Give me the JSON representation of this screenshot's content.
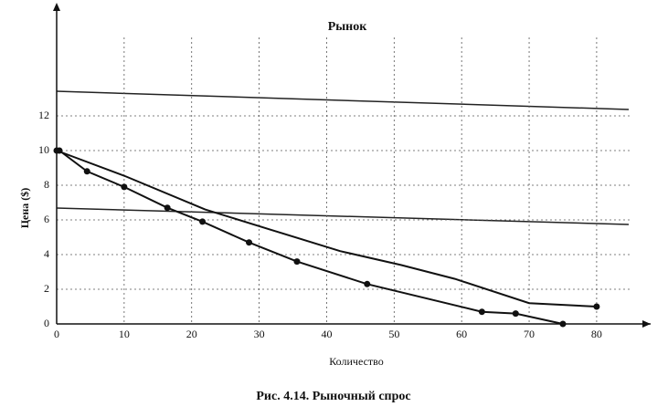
{
  "chart_data": {
    "type": "line",
    "title": "Рынок",
    "xlabel": "Количество",
    "ylabel": "Цена ($)",
    "caption": "Рис. 4.14. Рыночный спрос",
    "xlim": [
      0,
      88
    ],
    "ylim": [
      0,
      16
    ],
    "xticks": [
      0,
      10,
      20,
      30,
      40,
      50,
      60,
      70,
      80
    ],
    "yticks": [
      0,
      2,
      4,
      6,
      8,
      10,
      12
    ],
    "grid": true,
    "series": [
      {
        "color": "#111111",
        "markers": true,
        "x": [
          0.4,
          4.5,
          10,
          16.4,
          21.6,
          28.5,
          35.6,
          46,
          63,
          68,
          75
        ],
        "values": [
          10,
          8.8,
          7.9,
          6.7,
          5.9,
          4.7,
          3.6,
          2.3,
          0.7,
          0.6,
          0
        ]
      },
      {
        "color": "#111111",
        "markers": false,
        "x": [
          0,
          10.3,
          22,
          32,
          42,
          51,
          59,
          70,
          80
        ],
        "values": [
          10,
          8.5,
          6.6,
          5.4,
          4.2,
          3.4,
          2.6,
          1.2,
          1.0
        ]
      }
    ]
  }
}
